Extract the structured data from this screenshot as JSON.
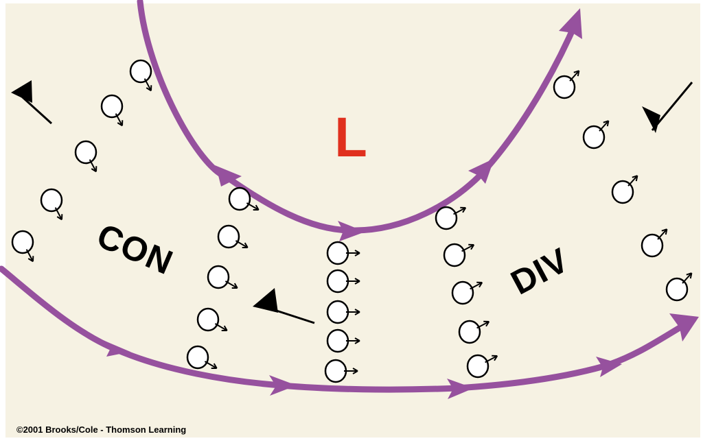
{
  "labels": {
    "low_pressure": "L",
    "convergence": "CON",
    "divergence": "DIV"
  },
  "credit": "©2001 Brooks/Cole - Thomson Learning",
  "colors": {
    "background": "#f6f2e3",
    "frame": "#ffffff",
    "streamline": "#96519e",
    "low_label": "#e0301e",
    "ink": "#000000",
    "particle_fill": "#ffffff"
  },
  "icons": {
    "particle": "circle-with-arrow",
    "wind_barb": "wind-barb-pennant"
  }
}
